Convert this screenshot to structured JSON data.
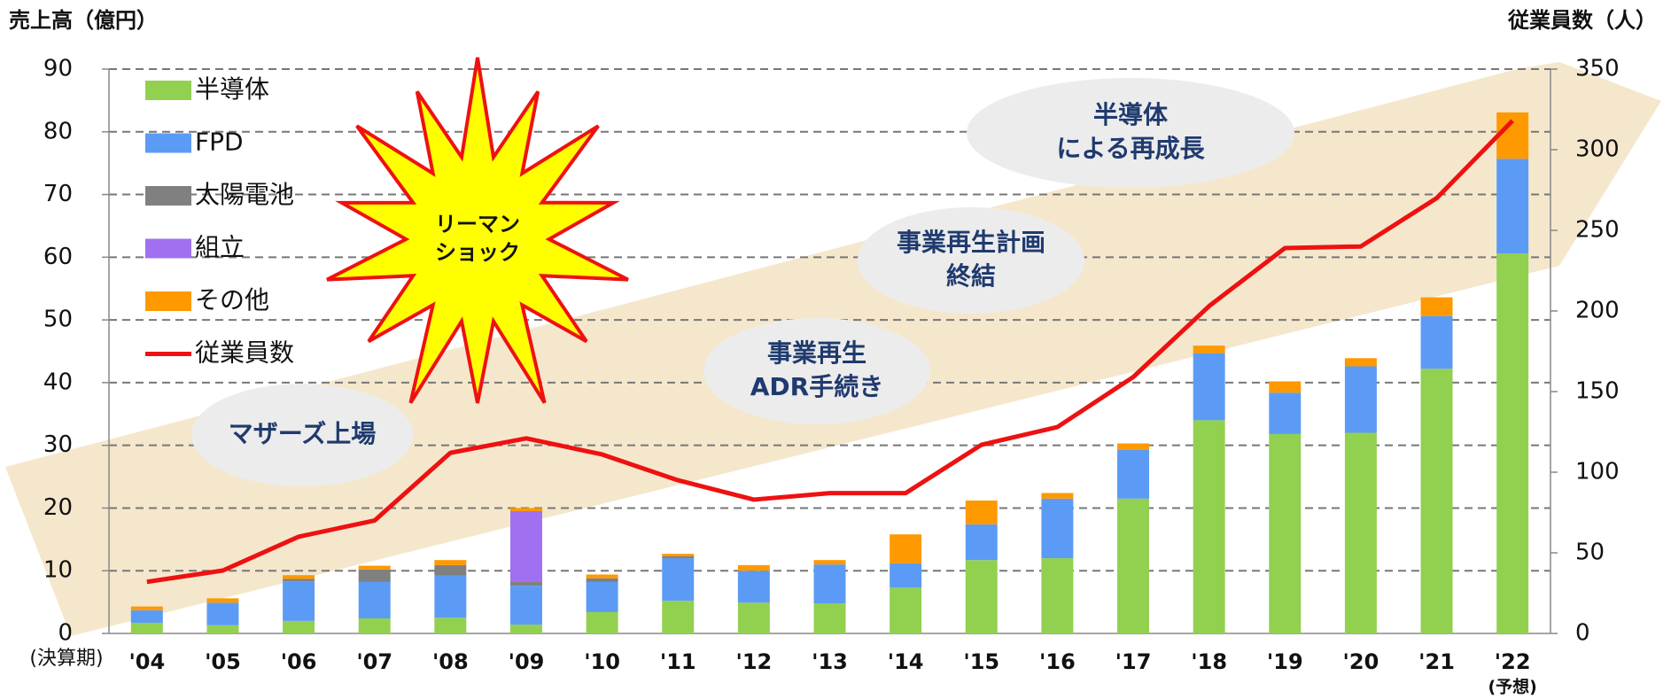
{
  "chart_data": {
    "type": "bar",
    "stacked": true,
    "y_label": "売上高（億円）",
    "y2_label": "従業員数（人）",
    "x_axis_note": "(決算期)",
    "forecast_note": "(予想)",
    "categories": [
      "'04",
      "'05",
      "'06",
      "'07",
      "'08",
      "'09",
      "'10",
      "'11",
      "'12",
      "'13",
      "'14",
      "'15",
      "'16",
      "'17",
      "'18",
      "'19",
      "'20",
      "'21",
      "'22"
    ],
    "series": [
      {
        "name": "半導体",
        "color": "#92d050",
        "values": [
          1.7,
          1.3,
          2.0,
          2.4,
          2.5,
          1.4,
          3.4,
          5.2,
          4.9,
          4.8,
          7.3,
          11.7,
          12.0,
          21.5,
          34.0,
          31.8,
          32.0,
          42.2,
          60.6
        ]
      },
      {
        "name": "FPD",
        "color": "#5b9bf5",
        "values": [
          2.0,
          3.6,
          6.3,
          5.8,
          6.7,
          6.2,
          4.8,
          6.8,
          5.1,
          6.2,
          3.9,
          5.7,
          9.5,
          7.8,
          10.7,
          6.6,
          10.6,
          8.4,
          15.1
        ]
      },
      {
        "name": "太陽電池",
        "color": "#808080",
        "values": [
          0,
          0,
          0.4,
          2.0,
          1.7,
          0.6,
          0.6,
          0.3,
          0,
          0,
          0,
          0,
          0,
          0,
          0,
          0,
          0,
          0,
          0
        ]
      },
      {
        "name": "組立",
        "color": "#a070f0",
        "values": [
          0,
          0,
          0,
          0,
          0,
          11.3,
          0,
          0,
          0,
          0,
          0,
          0,
          0,
          0,
          0,
          0,
          0,
          0,
          0
        ]
      },
      {
        "name": "その他",
        "color": "#ff9900",
        "values": [
          0.6,
          0.7,
          0.6,
          0.6,
          0.8,
          0.5,
          0.6,
          0.4,
          0.9,
          0.7,
          4.6,
          3.8,
          0.9,
          1.0,
          1.2,
          1.8,
          1.3,
          3.0,
          7.4
        ]
      },
      {
        "name": "従業員数",
        "color": "#ee1111",
        "type": "line",
        "axis": "y2",
        "values": [
          32,
          39,
          60,
          70,
          112,
          121,
          111,
          95,
          83,
          87,
          87,
          117,
          128,
          159,
          203,
          239,
          240,
          270,
          318
        ]
      }
    ],
    "ylim": [
      0,
      90
    ],
    "yticks": [
      0,
      10,
      20,
      30,
      40,
      50,
      60,
      70,
      80,
      90
    ],
    "y2lim": [
      0,
      350
    ],
    "y2ticks": [
      0,
      50,
      100,
      150,
      200,
      250,
      300,
      350
    ],
    "grid": true,
    "legend": "top-left",
    "annotations": [
      {
        "lines": [
          "マザーズ上場"
        ]
      },
      {
        "lines": [
          "事業再生",
          "ADR手続き"
        ]
      },
      {
        "lines": [
          "事業再生計画",
          "終結"
        ]
      },
      {
        "lines": [
          "半導体",
          "による再成長"
        ]
      },
      {
        "lines": [
          "リーマン",
          "ショック"
        ]
      }
    ]
  }
}
